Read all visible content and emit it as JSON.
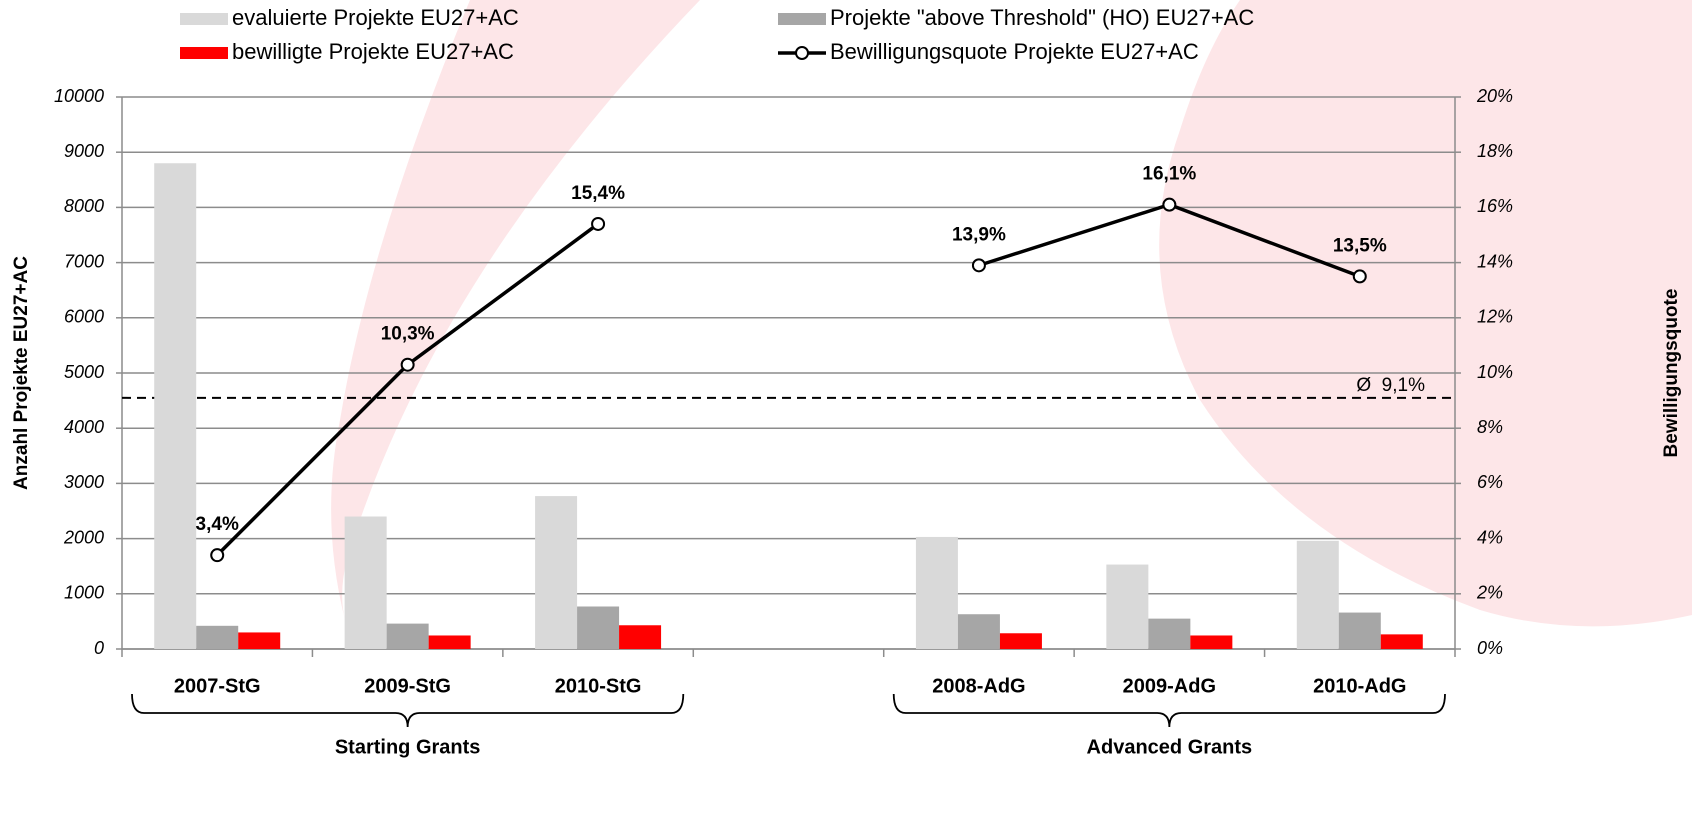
{
  "chart_data": {
    "type": "bar",
    "categories": [
      "2007-StG",
      "2009-StG",
      "2010-StG",
      null,
      "2008-AdG",
      "2009-AdG",
      "2010-AdG"
    ],
    "groups": [
      "Starting Grants",
      "Advanced Grants"
    ],
    "series": [
      {
        "name": "evaluierte Projekte EU27+AC",
        "color": "#d9d9d9",
        "values": [
          8800,
          2400,
          2770,
          null,
          2030,
          1530,
          1960
        ]
      },
      {
        "name": "Projekte \"above Threshold\" (HO) EU27+AC",
        "color": "#a6a6a6",
        "values": [
          420,
          460,
          770,
          null,
          630,
          550,
          660
        ]
      },
      {
        "name": "bewilligte Projekte EU27+AC",
        "color": "#ff0000",
        "values": [
          300,
          245,
          430,
          null,
          285,
          245,
          265
        ]
      },
      {
        "name": "Bewilligungsquote Projekte EU27+AC",
        "color": "#000000",
        "type": "line",
        "axis": "y2",
        "values": [
          3.4,
          10.3,
          15.4,
          null,
          13.9,
          16.1,
          13.5
        ],
        "value_labels": [
          "3,4%",
          "10,3%",
          "15,4%",
          null,
          "13,9%",
          "16,1%",
          "13,5%"
        ]
      }
    ],
    "ylabel": "Anzahl Projekte EU27+AC",
    "y2label": "Bewilligungsquote",
    "ylim": [
      0,
      10000
    ],
    "yticks": [
      0,
      1000,
      2000,
      3000,
      4000,
      5000,
      6000,
      7000,
      8000,
      9000,
      10000
    ],
    "y2lim": [
      0,
      20
    ],
    "y2ticks": [
      {
        "value": 0,
        "label": "0%"
      },
      {
        "value": 2,
        "label": "2%"
      },
      {
        "value": 4,
        "label": "4%"
      },
      {
        "value": 6,
        "label": "6%"
      },
      {
        "value": 8,
        "label": "8%"
      },
      {
        "value": 10,
        "label": "10%"
      },
      {
        "value": 12,
        "label": "12%"
      },
      {
        "value": 14,
        "label": "14%"
      },
      {
        "value": 16,
        "label": "16%"
      },
      {
        "value": 18,
        "label": "18%"
      },
      {
        "value": 20,
        "label": "20%"
      }
    ],
    "reference_line": {
      "value": 9.1,
      "label": "Ø  9,1%"
    },
    "grid": true,
    "legend": "top"
  }
}
